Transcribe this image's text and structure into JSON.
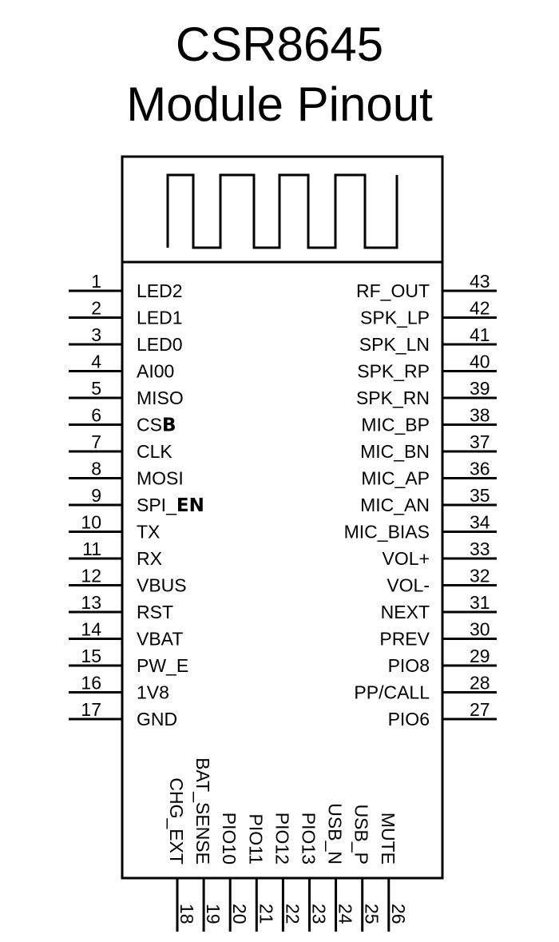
{
  "title": {
    "line1": "CSR8645",
    "line2": "Module Pinout"
  },
  "colors": {
    "ink": "#000000",
    "background": "#ffffff"
  },
  "antenna": {
    "name": "meander-antenna-icon"
  },
  "left_pins": [
    {
      "num": "1",
      "label": "LED2"
    },
    {
      "num": "2",
      "label": "LED1"
    },
    {
      "num": "3",
      "label": "LED0"
    },
    {
      "num": "4",
      "label": "AI00"
    },
    {
      "num": "5",
      "label": "MISO"
    },
    {
      "num": "6",
      "label": "CS",
      "bold_suffix": "B"
    },
    {
      "num": "7",
      "label": "CLK"
    },
    {
      "num": "8",
      "label": "MOSI"
    },
    {
      "num": "9",
      "label": "SPI_",
      "bold_suffix": "EN"
    },
    {
      "num": "10",
      "label": "TX"
    },
    {
      "num": "11",
      "label": "RX"
    },
    {
      "num": "12",
      "label": "VBUS"
    },
    {
      "num": "13",
      "label": "RST"
    },
    {
      "num": "14",
      "label": "VBAT"
    },
    {
      "num": "15",
      "label": "PW_E"
    },
    {
      "num": "16",
      "label": "1V8"
    },
    {
      "num": "17",
      "label": "GND"
    }
  ],
  "right_pins": [
    {
      "num": "43",
      "label": "RF_OUT"
    },
    {
      "num": "42",
      "label": "SPK_LP"
    },
    {
      "num": "41",
      "label": "SPK_LN"
    },
    {
      "num": "40",
      "label": "SPK_RP"
    },
    {
      "num": "39",
      "label": "SPK_RN"
    },
    {
      "num": "38",
      "label": "MIC_BP"
    },
    {
      "num": "37",
      "label": "MIC_BN"
    },
    {
      "num": "36",
      "label": "MIC_AP"
    },
    {
      "num": "35",
      "label": "MIC_AN"
    },
    {
      "num": "34",
      "label": "MIC_BIAS"
    },
    {
      "num": "33",
      "label": "VOL+"
    },
    {
      "num": "32",
      "label": "VOL-"
    },
    {
      "num": "31",
      "label": "NEXT"
    },
    {
      "num": "30",
      "label": "PREV"
    },
    {
      "num": "29",
      "label": "PIO8"
    },
    {
      "num": "28",
      "label": "PP/CALL"
    },
    {
      "num": "27",
      "label": "PIO6"
    }
  ],
  "bottom_pins": [
    {
      "num": "18",
      "label": "CHG_EXT"
    },
    {
      "num": "19",
      "label": "BAT_SENSE"
    },
    {
      "num": "20",
      "label": "PIO10"
    },
    {
      "num": "21",
      "label": "PIO11"
    },
    {
      "num": "22",
      "label": "PIO12"
    },
    {
      "num": "23",
      "label": "PIO13"
    },
    {
      "num": "24",
      "label": "USB_N"
    },
    {
      "num": "25",
      "label": "USB_P"
    },
    {
      "num": "26",
      "label": "MUTE"
    }
  ]
}
